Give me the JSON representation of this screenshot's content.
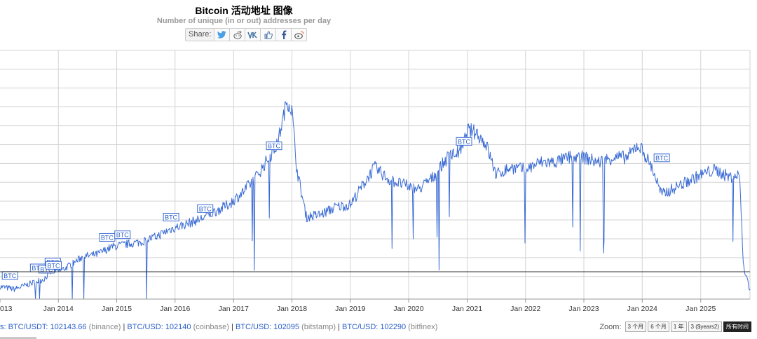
{
  "header": {
    "title": "Bitcoin 活动地址 图像",
    "subtitle": "Number of unique (in or out) addresses per day"
  },
  "share": {
    "label": "Share:",
    "icons": [
      "twitter-icon",
      "reddit-icon",
      "vk-icon",
      "like-icon",
      "facebook-icon",
      "weibo-icon"
    ]
  },
  "chart_data": {
    "type": "line",
    "title": "Bitcoin 活动地址 图像",
    "subtitle": "Number of unique (in or out) addresses per day",
    "x_tick_labels": [
      "013",
      "Jan 2014",
      "Jan 2015",
      "Jan 2016",
      "Jan 2017",
      "Jan 2018",
      "Jan 2019",
      "Jan 2020",
      "Jan 2021",
      "Jan 2022",
      "Jan 2023",
      "Jan 2024",
      "Jan 2025"
    ],
    "xlim": [
      "2013-01-01",
      "2025-11-05"
    ],
    "y_axis_labels_shown": false,
    "grid": true,
    "series_color": "#3a6bd4",
    "series": [
      {
        "points": [
          [
            "2013-01-01",
            0.05
          ],
          [
            "2013-04-01",
            0.04
          ],
          [
            "2013-07-01",
            0.06
          ],
          [
            "2013-10-01",
            0.08
          ],
          [
            "2013-12-01",
            0.12
          ],
          [
            "2014-01-01",
            0.11
          ],
          [
            "2014-03-01",
            0.13
          ],
          [
            "2014-06-01",
            0.17
          ],
          [
            "2014-09-01",
            0.18
          ],
          [
            "2014-12-01",
            0.21
          ],
          [
            "2015-03-01",
            0.22
          ],
          [
            "2015-06-01",
            0.23
          ],
          [
            "2015-09-01",
            0.25
          ],
          [
            "2015-12-01",
            0.28
          ],
          [
            "2016-03-01",
            0.3
          ],
          [
            "2016-06-01",
            0.32
          ],
          [
            "2016-09-01",
            0.35
          ],
          [
            "2016-12-01",
            0.38
          ],
          [
            "2017-03-01",
            0.43
          ],
          [
            "2017-06-01",
            0.5
          ],
          [
            "2017-08-01",
            0.56
          ],
          [
            "2017-10-01",
            0.62
          ],
          [
            "2017-12-01",
            0.8
          ],
          [
            "2018-01-01",
            0.76
          ],
          [
            "2018-02-01",
            0.52
          ],
          [
            "2018-04-01",
            0.33
          ],
          [
            "2018-07-01",
            0.34
          ],
          [
            "2018-10-01",
            0.37
          ],
          [
            "2019-01-01",
            0.38
          ],
          [
            "2019-04-01",
            0.47
          ],
          [
            "2019-06-01",
            0.53
          ],
          [
            "2019-09-01",
            0.48
          ],
          [
            "2019-12-01",
            0.46
          ],
          [
            "2020-03-01",
            0.44
          ],
          [
            "2020-06-01",
            0.49
          ],
          [
            "2020-09-01",
            0.57
          ],
          [
            "2020-12-01",
            0.6
          ],
          [
            "2021-01-01",
            0.68
          ],
          [
            "2021-03-01",
            0.67
          ],
          [
            "2021-05-01",
            0.62
          ],
          [
            "2021-07-01",
            0.5
          ],
          [
            "2021-10-01",
            0.53
          ],
          [
            "2022-01-01",
            0.52
          ],
          [
            "2022-04-01",
            0.55
          ],
          [
            "2022-07-01",
            0.55
          ],
          [
            "2022-10-01",
            0.57
          ],
          [
            "2023-01-01",
            0.57
          ],
          [
            "2023-04-01",
            0.55
          ],
          [
            "2023-07-01",
            0.57
          ],
          [
            "2023-10-01",
            0.57
          ],
          [
            "2023-12-01",
            0.62
          ],
          [
            "2024-01-01",
            0.6
          ],
          [
            "2024-03-01",
            0.53
          ],
          [
            "2024-05-01",
            0.42
          ],
          [
            "2024-08-01",
            0.45
          ],
          [
            "2024-11-01",
            0.48
          ],
          [
            "2025-01-01",
            0.5
          ],
          [
            "2025-04-01",
            0.52
          ],
          [
            "2025-07-01",
            0.49
          ],
          [
            "2025-09-01",
            0.5
          ],
          [
            "2025-09-25",
            0.13
          ],
          [
            "2025-10-15",
            0.09
          ],
          [
            "2025-11-05",
            0.03
          ]
        ]
      }
    ],
    "annotations": [
      {
        "x": "2013-01-15",
        "label": "BTC"
      },
      {
        "x": "2013-07-10",
        "label": "BTC"
      },
      {
        "x": "2013-09-01",
        "label": "BTC"
      },
      {
        "x": "2013-10-10",
        "label": "BTC"
      },
      {
        "x": "2013-10-15",
        "label": "BTC"
      },
      {
        "x": "2014-09-15",
        "label": "BTC"
      },
      {
        "x": "2014-12-20",
        "label": "BTC"
      },
      {
        "x": "2015-10-20",
        "label": "BTC"
      },
      {
        "x": "2016-05-20",
        "label": "BTC"
      },
      {
        "x": "2017-07-25",
        "label": "BTC"
      },
      {
        "x": "2020-10-25",
        "label": "BTC"
      },
      {
        "x": "2024-03-15",
        "label": "BTC"
      }
    ]
  },
  "footer": {
    "prices": [
      {
        "text": "s: BTC/USDT: 102143.66",
        "source": "(binance)"
      },
      {
        "text": "BTC/USD: 102140",
        "source": "(coinbase)"
      },
      {
        "text": "BTC/USD: 102095",
        "source": "(bitstamp)"
      },
      {
        "text": "BTC/USD: 102290",
        "source": "(bitfinex)"
      }
    ],
    "separator": "|",
    "zoom_label": "Zoom:",
    "zoom_options": [
      "3 个月",
      "6 个月",
      "1 年",
      "3 ($years2)",
      "所有时间"
    ],
    "zoom_active": "所有时间"
  }
}
